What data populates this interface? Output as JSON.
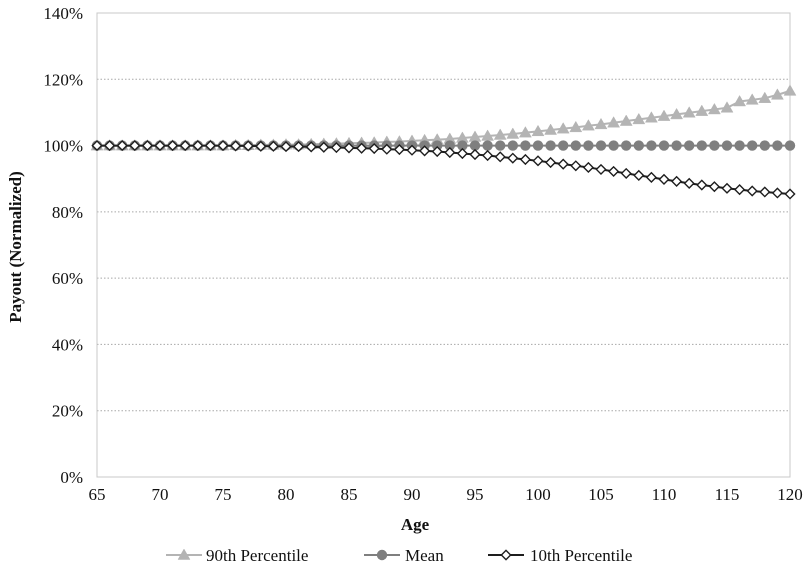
{
  "chart_data": {
    "type": "line",
    "xlabel": "Age",
    "ylabel": "Payout (Normalized)",
    "x_ticks": [
      "65",
      "70",
      "75",
      "80",
      "85",
      "90",
      "95",
      "100",
      "105",
      "110",
      "115",
      "120"
    ],
    "y_ticks": [
      "0%",
      "20%",
      "40%",
      "60%",
      "80%",
      "100%",
      "120%",
      "140%"
    ],
    "xlim": [
      65,
      120
    ],
    "ylim": [
      0,
      1.4
    ],
    "grid": "horizontal-dotted",
    "legend_position": "bottom",
    "x": [
      65,
      66,
      67,
      68,
      69,
      70,
      71,
      72,
      73,
      74,
      75,
      76,
      77,
      78,
      79,
      80,
      81,
      82,
      83,
      84,
      85,
      86,
      87,
      88,
      89,
      90,
      91,
      92,
      93,
      94,
      95,
      96,
      97,
      98,
      99,
      100,
      101,
      102,
      103,
      104,
      105,
      106,
      107,
      108,
      109,
      110,
      111,
      112,
      113,
      114,
      115,
      116,
      117,
      118,
      119,
      120
    ],
    "series": [
      {
        "name": "90th Percentile",
        "color": "#b4b4b4",
        "marker": "triangle",
        "values": [
          1.0,
          1.0,
          1.0,
          1.0,
          1.0,
          1.0,
          1.0,
          1.0,
          1.0,
          1.0,
          1.0,
          1.001,
          1.001,
          1.002,
          1.002,
          1.003,
          1.003,
          1.004,
          1.005,
          1.006,
          1.007,
          1.008,
          1.009,
          1.011,
          1.012,
          1.014,
          1.016,
          1.018,
          1.02,
          1.023,
          1.026,
          1.029,
          1.032,
          1.035,
          1.039,
          1.043,
          1.047,
          1.051,
          1.055,
          1.06,
          1.064,
          1.069,
          1.074,
          1.079,
          1.084,
          1.089,
          1.094,
          1.099,
          1.104,
          1.109,
          1.114,
          1.133,
          1.138,
          1.143,
          1.153,
          1.165
        ]
      },
      {
        "name": "Mean",
        "color": "#7f7f7f",
        "marker": "circle",
        "values": [
          1.0,
          1.0,
          1.0,
          1.0,
          1.0,
          1.0,
          1.0,
          1.0,
          1.0,
          1.0,
          1.0,
          1.0,
          1.0,
          1.0,
          1.0,
          1.0,
          1.0,
          1.0,
          1.0,
          1.0,
          1.0,
          1.0,
          1.0,
          1.0,
          1.0,
          1.0,
          1.0,
          1.0,
          1.0,
          1.0,
          1.0,
          1.0,
          1.0,
          1.0,
          1.0,
          1.0,
          1.0,
          1.0,
          1.0,
          1.0,
          1.0,
          1.0,
          1.0,
          1.0,
          1.0,
          1.0,
          1.0,
          1.0,
          1.0,
          1.0,
          1.0,
          1.0,
          1.0,
          1.0,
          1.0,
          1.0
        ]
      },
      {
        "name": "10th Percentile",
        "color": "#1e1e1e",
        "marker": "diamond",
        "values": [
          1.0,
          1.0,
          1.0,
          1.0,
          1.0,
          1.0,
          1.0,
          1.0,
          1.0,
          1.0,
          1.0,
          0.999,
          0.999,
          0.998,
          0.998,
          0.997,
          0.997,
          0.996,
          0.995,
          0.994,
          0.993,
          0.992,
          0.991,
          0.989,
          0.988,
          0.986,
          0.984,
          0.982,
          0.979,
          0.976,
          0.973,
          0.97,
          0.966,
          0.962,
          0.958,
          0.954,
          0.949,
          0.944,
          0.939,
          0.934,
          0.928,
          0.922,
          0.916,
          0.91,
          0.904,
          0.898,
          0.892,
          0.886,
          0.881,
          0.876,
          0.871,
          0.867,
          0.863,
          0.86,
          0.857,
          0.854
        ]
      }
    ]
  }
}
